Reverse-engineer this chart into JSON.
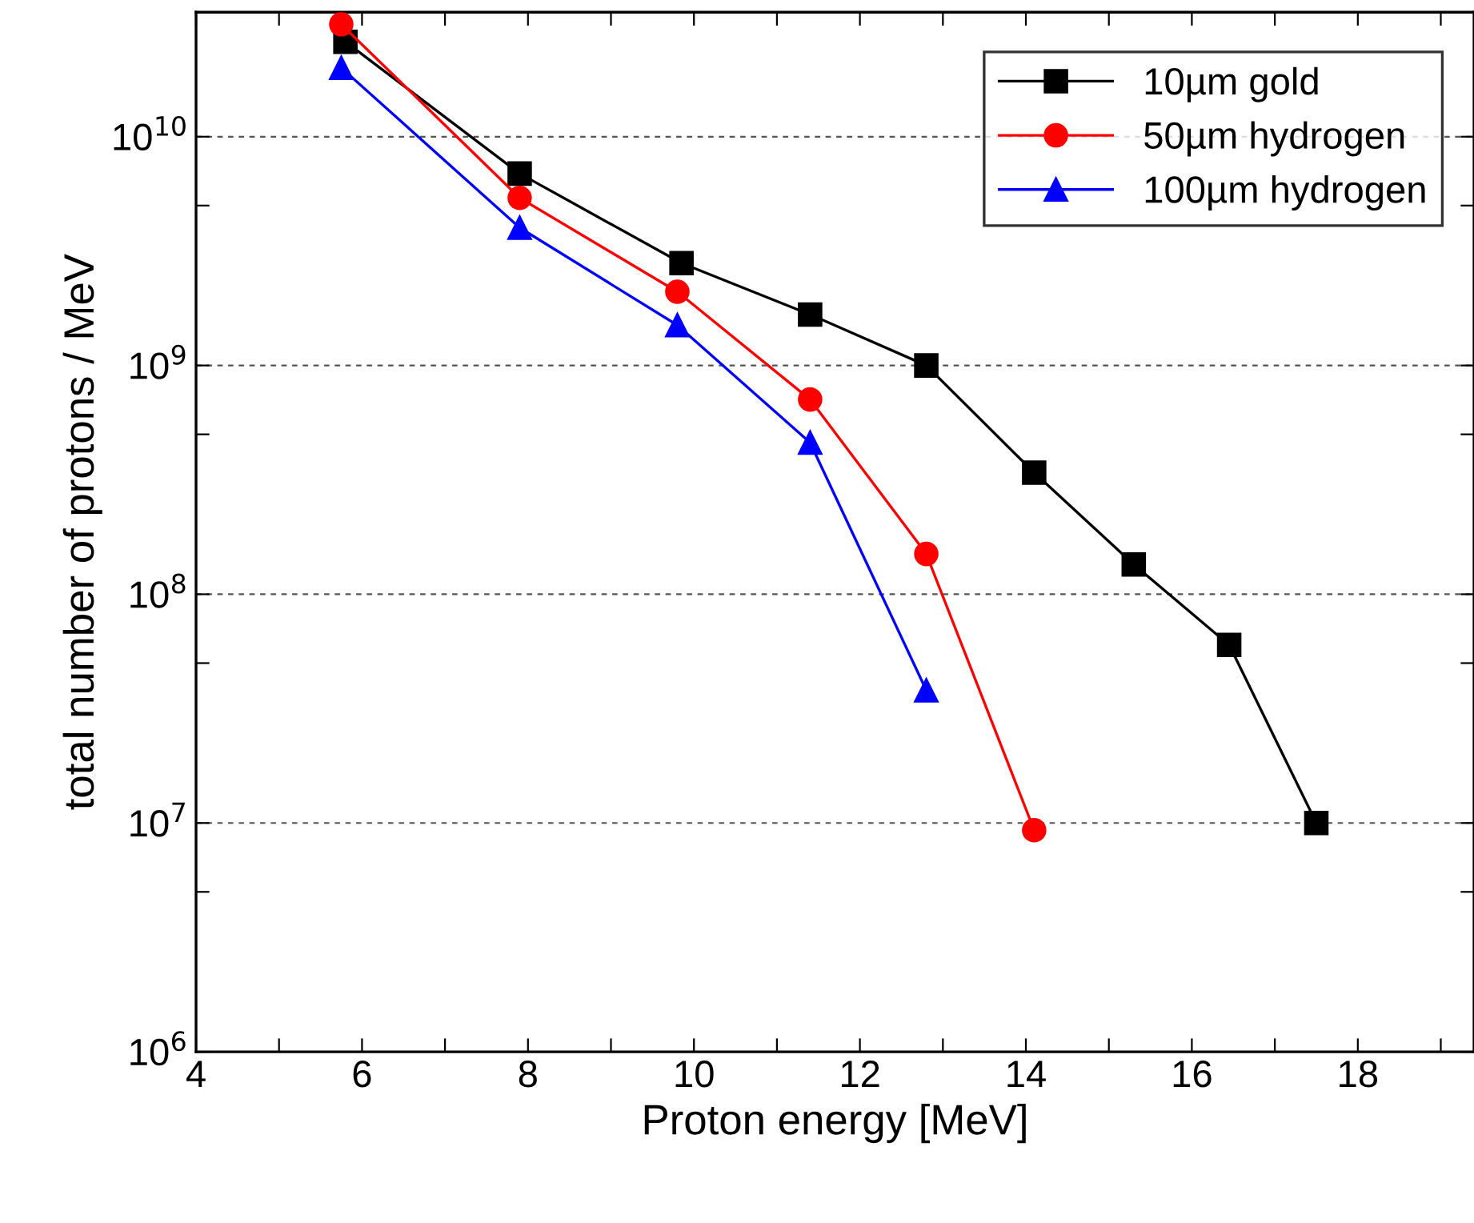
{
  "chart_data": {
    "type": "line",
    "xlabel": "Proton energy [MeV]",
    "ylabel": "total number of protons / MeV",
    "log": "y",
    "grid": "y",
    "legend": "top right",
    "line_style": "solid",
    "xlim": [
      4,
      19.4
    ],
    "ylim": [
      1000000,
      35000000000
    ],
    "xticks": [
      4,
      {
        "value": 5,
        "label": null
      },
      6,
      {
        "value": 7,
        "label": null
      },
      8,
      {
        "value": 9,
        "label": null
      },
      10,
      {
        "value": 11,
        "label": null
      },
      12,
      {
        "value": 13,
        "label": null
      },
      14,
      {
        "value": 15,
        "label": null
      },
      16,
      {
        "value": 17,
        "label": null
      },
      18,
      {
        "value": 19,
        "label": null
      }
    ],
    "yticks": [
      {
        "value": 1000000,
        "label": "10$^{6}$"
      },
      {
        "value": 5000000,
        "label": null
      },
      {
        "value": 10000000,
        "label": "10$^{7}$"
      },
      {
        "value": 50000000,
        "label": null
      },
      {
        "value": 100000000,
        "label": "10$^{8}$"
      },
      {
        "value": 500000000,
        "label": null
      },
      {
        "value": 1000000000,
        "label": "10$^{9}$"
      },
      {
        "value": 5000000000,
        "label": null
      },
      {
        "value": 10000000000,
        "label": "10$^{10}$"
      }
    ],
    "series": [
      {
        "name": "10µm gold",
        "color": "#000000",
        "marker": "square",
        "x": [
          5.8,
          7.9,
          9.85,
          11.4,
          12.8,
          14.1,
          15.3,
          16.45,
          17.5
        ],
        "values": [
          26000000000,
          6900000000,
          2800000000,
          1670000000,
          1000000000,
          340000000,
          135000000,
          60000000,
          10000000
        ]
      },
      {
        "name": "50µm hydrogen",
        "color": "#ff0000",
        "marker": "circle",
        "x": [
          5.75,
          7.9,
          9.8,
          11.4,
          12.8,
          14.1
        ],
        "values": [
          31000000000,
          5400000000,
          2100000000,
          710000000,
          150000000,
          9300000
        ]
      },
      {
        "name": "100µm hydrogen",
        "color": "#0000ff",
        "marker": "triangle",
        "x": [
          5.75,
          7.9,
          9.8,
          11.4,
          12.8
        ],
        "values": [
          20000000000,
          4000000000,
          1500000000,
          460000000,
          38000000
        ]
      }
    ]
  }
}
